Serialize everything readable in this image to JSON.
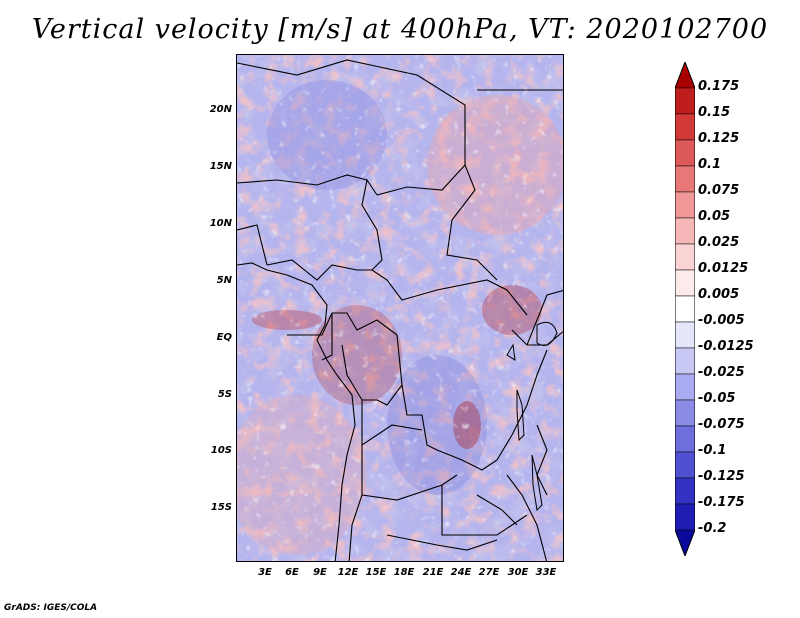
{
  "title": "Vertical velocity [m/s] at 400hPa, VT: 2020102700",
  "y_axis_labels": [
    "20N",
    "15N",
    "10N",
    "5N",
    "EQ",
    "5S",
    "10S",
    "15S"
  ],
  "x_axis_labels": [
    "3E",
    "6E",
    "9E",
    "12E",
    "15E",
    "18E",
    "21E",
    "24E",
    "27E",
    "30E",
    "33E"
  ],
  "colorbar": {
    "labels": [
      "0.175",
      "0.15",
      "0.125",
      "0.1",
      "0.075",
      "0.05",
      "0.025",
      "0.0125",
      "0.005",
      "-0.005",
      "-0.0125",
      "-0.025",
      "-0.05",
      "-0.075",
      "-0.1",
      "-0.125",
      "-0.175",
      "-0.2"
    ],
    "colors": [
      "#a80000",
      "#be1e1e",
      "#d23a3a",
      "#de5a5a",
      "#e87878",
      "#f09898",
      "#f6b8b8",
      "#fad4d4",
      "#fdebeb",
      "#ffffff",
      "#e6e6fa",
      "#c8c8f5",
      "#aaaaf0",
      "#8c8ce6",
      "#6e6edc",
      "#5050d2",
      "#3232c3",
      "#1e1eb4",
      "#0a0a9a"
    ]
  },
  "footer": "GrADS: IGES/COLA"
}
